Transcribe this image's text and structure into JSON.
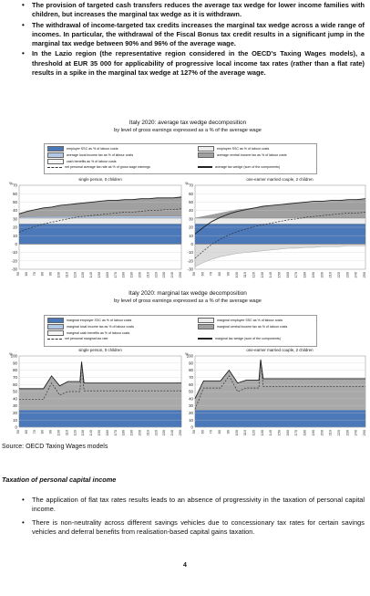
{
  "top_bullets": [
    "The provision of targeted cash transfers reduces the average tax wedge for lower income families with children, but increases the marginal tax wedge as it is withdrawn.",
    "The withdrawal of income-targeted tax credits increases the marginal tax wedge across a wide range of incomes. In particular, the withdrawal of the Fiscal Bonus tax credit results in a significant jump in the marginal tax wedge between 90% and 96% of the average wage.",
    "In the Lazio region (the representative region considered in the OECD's Taxing Wages models), a threshold at EUR 35 000 for applicability of progressive local income tax rates (rather than a flat rate) results in a spike in the marginal tax wedge at 127% of the average wage."
  ],
  "figures": [
    {
      "title": "Italy 2020: average tax wedge decomposition",
      "subtitle": "by level of gross earnings expressed as a % of the average wage",
      "legend": [
        {
          "label": "employer SSC as % of labour costs",
          "type": "swatch",
          "color": "#4a78b8"
        },
        {
          "label": "employee SSC as % of labour costs",
          "type": "swatch",
          "color": "#ececec"
        },
        {
          "label": "average local income tax as % of labour costs",
          "type": "swatch",
          "color": "#b3c8e6"
        },
        {
          "label": "average central income tax as % of labour costs",
          "type": "swatch",
          "color": "#a0a0a0"
        },
        {
          "label": "cash benefits as % of labour costs",
          "type": "swatch",
          "color": "#f5f5f5"
        },
        {
          "label": "net personal average tax rate as % of gross wage earnings",
          "type": "dash",
          "color": "#333333"
        },
        {
          "label": "average tax wedge (sum of the components)",
          "type": "line",
          "color": "#222222"
        }
      ],
      "panels": [
        {
          "title": "single person, 0 children",
          "y_ticks": [
            "70",
            "60",
            "50",
            "40",
            "30",
            "20",
            "10",
            "0",
            "-10",
            "-20",
            "-30"
          ],
          "y_unit": "%"
        },
        {
          "title": "one-earner married couple, 2 children",
          "y_ticks": [
            "70",
            "60",
            "50",
            "40",
            "30",
            "20",
            "10",
            "0",
            "-10",
            "-20",
            "-30"
          ],
          "y_unit": "%"
        }
      ],
      "x_ticks": [
        "50",
        "60",
        "70",
        "80",
        "90",
        "100",
        "110",
        "120",
        "130",
        "140",
        "150",
        "160",
        "170",
        "180",
        "190",
        "200",
        "210",
        "220",
        "230",
        "240",
        "250"
      ]
    },
    {
      "title": "Italy 2020: marginal tax wedge decomposition",
      "subtitle": "by level of gross earnings expressed as a % of the average wage",
      "legend": [
        {
          "label": "marginal employer SSC as % of labour costs",
          "type": "swatch",
          "color": "#4a78b8"
        },
        {
          "label": "marginal employee SSC as % of labour costs",
          "type": "swatch",
          "color": "#ececec"
        },
        {
          "label": "marginal local income tax as % of labour costs",
          "type": "swatch",
          "color": "#b3c8e6"
        },
        {
          "label": "marginal central income tax as % of labour costs",
          "type": "swatch",
          "color": "#a0a0a0"
        },
        {
          "label": "marginal cash benefits as % of labour costs",
          "type": "swatch",
          "color": "#f5f5f5"
        },
        {
          "label": "net personal marginal tax rate",
          "type": "dash",
          "color": "#333333"
        },
        {
          "label": "marginal tax wedge (sum of the components)",
          "type": "line",
          "color": "#222222"
        }
      ],
      "panels": [
        {
          "title": "single person, 0 children",
          "y_ticks": [
            "100",
            "90",
            "80",
            "70",
            "60",
            "50",
            "40",
            "30",
            "20",
            "10",
            "0"
          ],
          "y_unit": "%"
        },
        {
          "title": "one-earner married couple, 2 children",
          "y_ticks": [
            "100",
            "90",
            "80",
            "70",
            "60",
            "50",
            "40",
            "30",
            "20",
            "10",
            "0"
          ],
          "y_unit": "%"
        }
      ],
      "x_ticks": [
        "50",
        "60",
        "70",
        "80",
        "90",
        "100",
        "110",
        "120",
        "130",
        "140",
        "150",
        "160",
        "170",
        "180",
        "190",
        "200",
        "210",
        "220",
        "230",
        "240",
        "250"
      ]
    }
  ],
  "chart_data": [
    {
      "type": "area",
      "title": "Italy 2020: average tax wedge decomposition",
      "panel": "single person, 0 children",
      "x": [
        50,
        60,
        70,
        80,
        90,
        100,
        110,
        120,
        130,
        140,
        150,
        160,
        170,
        180,
        190,
        200,
        210,
        220,
        230,
        240,
        250
      ],
      "ylim": [
        -30,
        70
      ],
      "series": [
        {
          "name": "employer SSC as % of labour costs",
          "values": [
            24,
            24,
            24,
            24,
            24,
            24,
            24,
            24,
            24,
            24,
            24,
            24,
            24,
            24,
            24,
            24,
            24,
            24,
            24,
            24,
            24
          ]
        },
        {
          "name": "employee SSC as % of labour costs",
          "values": [
            7,
            7,
            7,
            7,
            7,
            7,
            7,
            7,
            7,
            7,
            7,
            7,
            7,
            7,
            7,
            7,
            7,
            7,
            7,
            7,
            7
          ]
        },
        {
          "name": "average local income tax as % of labour costs",
          "values": [
            1.5,
            1.6,
            1.7,
            1.8,
            1.9,
            2.0,
            2.0,
            2.1,
            2.1,
            2.2,
            2.2,
            2.2,
            2.3,
            2.3,
            2.3,
            2.3,
            2.3,
            2.3,
            2.4,
            2.4,
            2.4
          ]
        },
        {
          "name": "average central income tax as % of labour costs",
          "values": [
            4,
            6,
            8,
            10,
            11,
            12,
            13,
            14,
            15,
            16,
            17,
            18,
            18,
            19,
            19,
            20,
            20,
            21,
            21,
            21,
            22
          ]
        },
        {
          "name": "net personal average tax rate as % of gross wage earnings",
          "values": [
            14,
            18,
            21,
            24,
            26,
            28,
            30,
            32,
            33,
            34,
            35,
            36,
            37,
            38,
            38,
            39,
            40,
            40,
            41,
            41,
            42
          ]
        },
        {
          "name": "average tax wedge (sum of the components)",
          "values": [
            36,
            39,
            41,
            43,
            44,
            46,
            47,
            48,
            49,
            50,
            51,
            52,
            52,
            53,
            53,
            54,
            54,
            55,
            55,
            55,
            56
          ]
        }
      ]
    },
    {
      "type": "area",
      "title": "Italy 2020: average tax wedge decomposition",
      "panel": "one-earner married couple, 2 children",
      "x": [
        50,
        60,
        70,
        80,
        90,
        100,
        110,
        120,
        130,
        140,
        150,
        160,
        170,
        180,
        190,
        200,
        210,
        220,
        230,
        240,
        250
      ],
      "ylim": [
        -30,
        70
      ],
      "series": [
        {
          "name": "employer SSC as % of labour costs",
          "values": [
            24,
            24,
            24,
            24,
            24,
            24,
            24,
            24,
            24,
            24,
            24,
            24,
            24,
            24,
            24,
            24,
            24,
            24,
            24,
            24,
            24
          ]
        },
        {
          "name": "employee SSC as % of labour costs",
          "values": [
            7,
            7,
            7,
            7,
            7,
            7,
            7,
            7,
            7,
            7,
            7,
            7,
            7,
            7,
            7,
            7,
            7,
            7,
            7,
            7,
            7
          ]
        },
        {
          "name": "average central income tax as % of labour costs",
          "values": [
            0,
            2,
            4,
            6,
            8,
            10,
            11,
            12,
            13,
            14,
            15,
            16,
            17,
            18,
            18,
            19,
            19,
            20,
            20,
            21,
            21
          ]
        },
        {
          "name": "cash benefits as % of labour costs",
          "values": [
            -27,
            -22,
            -18,
            -15,
            -13,
            -11,
            -10,
            -9,
            -8,
            -7,
            -6,
            -5,
            -5,
            -4,
            -4,
            -3,
            -3,
            -3,
            -2,
            -2,
            -2
          ]
        },
        {
          "name": "net personal average tax rate as % of gross wage earnings",
          "values": [
            -17,
            -8,
            0,
            6,
            11,
            15,
            18,
            21,
            23,
            25,
            27,
            29,
            30,
            32,
            33,
            34,
            35,
            36,
            37,
            37,
            38
          ]
        },
        {
          "name": "average tax wedge (sum of the components)",
          "values": [
            12,
            20,
            27,
            32,
            36,
            39,
            41,
            43,
            45,
            46,
            47,
            48,
            49,
            50,
            51,
            51,
            52,
            52,
            53,
            53,
            54
          ]
        }
      ]
    },
    {
      "type": "area",
      "title": "Italy 2020: marginal tax wedge decomposition",
      "panel": "single person, 0 children",
      "x": [
        50,
        60,
        70,
        80,
        90,
        100,
        110,
        120,
        125,
        127,
        130,
        140,
        150,
        160,
        170,
        180,
        190,
        200,
        210,
        220,
        230,
        240,
        250
      ],
      "ylim": [
        0,
        100
      ],
      "series": [
        {
          "name": "marginal employer SSC as % of labour costs",
          "values": [
            24,
            24,
            24,
            24,
            24,
            24,
            24,
            24,
            24,
            24,
            24,
            24,
            24,
            24,
            24,
            24,
            24,
            24,
            24,
            24,
            24,
            24,
            24
          ]
        },
        {
          "name": "marginal tax wedge (sum of the components)",
          "values": [
            54,
            54,
            54,
            54,
            72,
            58,
            64,
            64,
            64,
            92,
            62,
            62,
            62,
            62,
            62,
            62,
            62,
            62,
            62,
            62,
            62,
            62,
            62
          ]
        },
        {
          "name": "net personal marginal tax rate",
          "values": [
            39,
            39,
            39,
            39,
            62,
            45,
            50,
            50,
            50,
            92,
            51,
            51,
            51,
            51,
            51,
            51,
            51,
            51,
            51,
            51,
            51,
            51,
            51
          ]
        }
      ]
    },
    {
      "type": "area",
      "title": "Italy 2020: marginal tax wedge decomposition",
      "panel": "one-earner married couple, 2 children",
      "x": [
        50,
        60,
        70,
        80,
        90,
        100,
        110,
        120,
        125,
        127,
        130,
        140,
        150,
        160,
        170,
        180,
        190,
        200,
        210,
        220,
        230,
        240,
        250
      ],
      "ylim": [
        0,
        100
      ],
      "series": [
        {
          "name": "marginal employer SSC as % of labour costs",
          "values": [
            24,
            24,
            24,
            24,
            24,
            24,
            24,
            24,
            24,
            24,
            24,
            24,
            24,
            24,
            24,
            24,
            24,
            24,
            24,
            24,
            24,
            24,
            24
          ]
        },
        {
          "name": "marginal tax wedge (sum of the components)",
          "values": [
            40,
            65,
            65,
            65,
            80,
            62,
            66,
            66,
            66,
            95,
            68,
            68,
            68,
            68,
            68,
            68,
            68,
            68,
            68,
            68,
            68,
            68,
            68
          ]
        },
        {
          "name": "net personal marginal tax rate",
          "values": [
            25,
            55,
            55,
            55,
            72,
            50,
            55,
            55,
            55,
            95,
            57,
            57,
            57,
            57,
            57,
            57,
            57,
            57,
            57,
            57,
            57,
            57,
            57
          ]
        }
      ]
    }
  ],
  "source": "Source: OECD Taxing Wages models",
  "section_heading": "Taxation of personal capital income",
  "bottom_bullets": [
    "The application of flat tax rates results leads to an absence of progressivity in the taxation of personal capital income.",
    "There is non-neutrality across different savings vehicles due to concessionary tax rates for certain savings vehicles and deferral benefits from realisation-based capital gains taxation."
  ],
  "page_number": "4"
}
